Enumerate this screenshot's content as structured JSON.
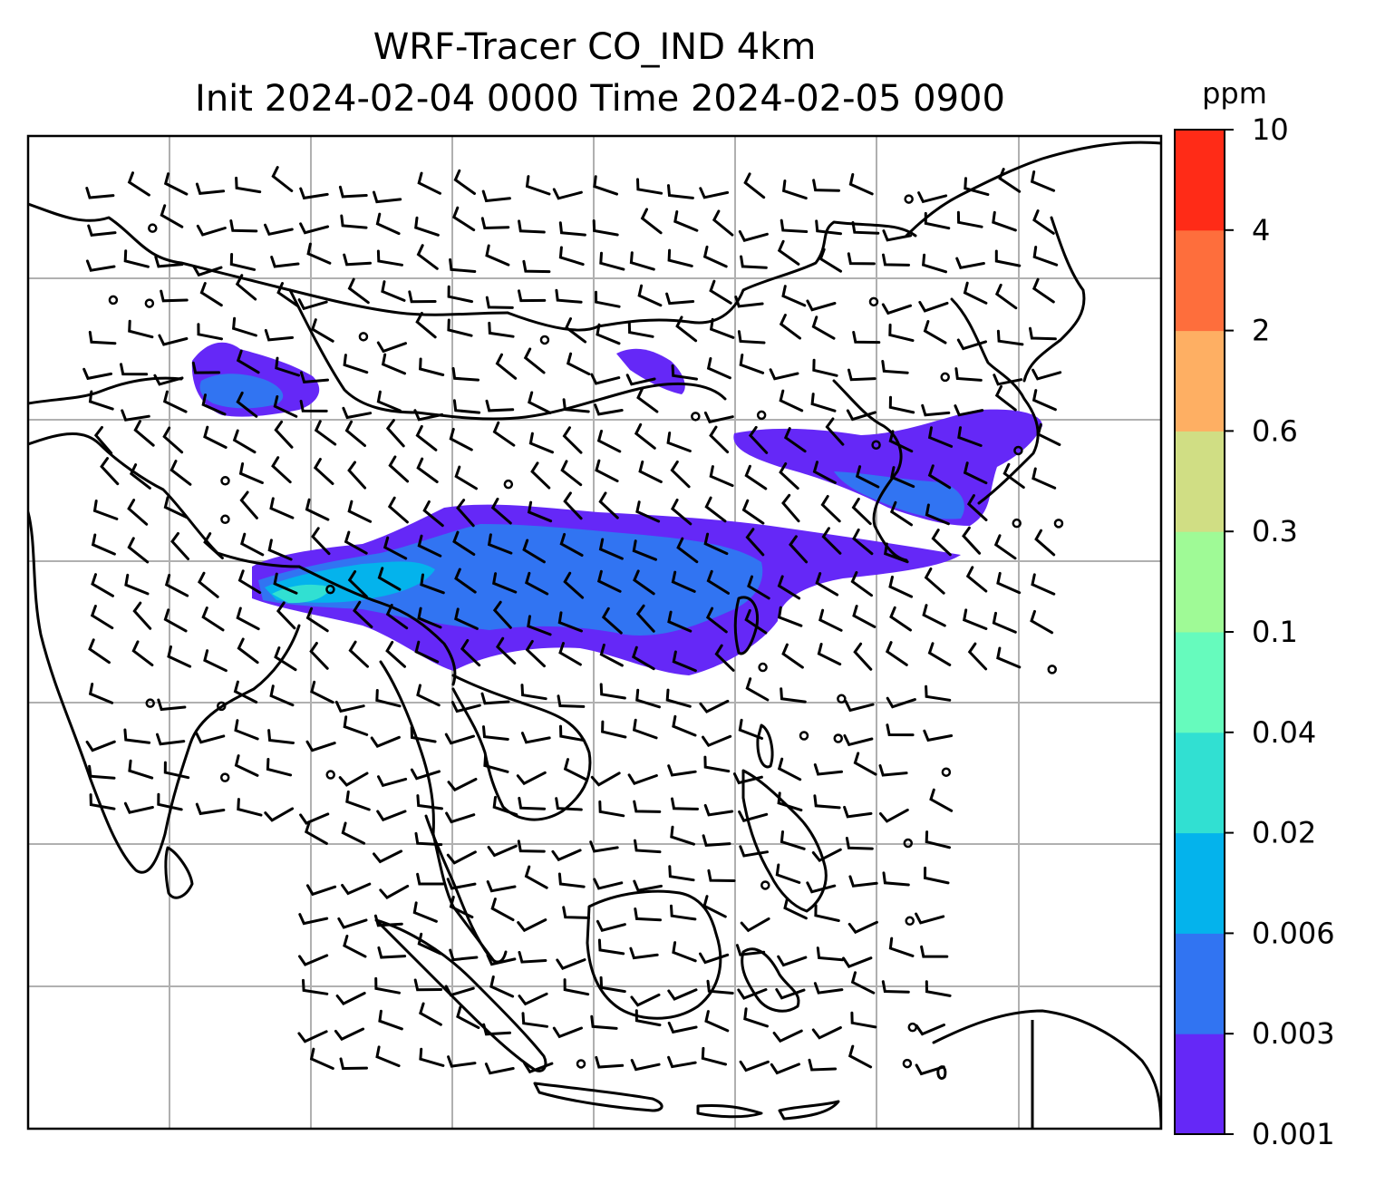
{
  "title": {
    "line1": "WRF-Tracer CO_IND 4km",
    "line2": "Init 2024-02-04 0000 Time 2024-02-05 0900"
  },
  "colorbar": {
    "unit": "ppm",
    "levels": [
      "0.001",
      "0.003",
      "0.006",
      "0.02",
      "0.04",
      "0.1",
      "0.3",
      "0.6",
      "2",
      "4",
      "10"
    ],
    "colors": [
      "#6528f7",
      "#3174f2",
      "#04b3ec",
      "#31e0d2",
      "#66fbbd",
      "#9ffa96",
      "#d0de84",
      "#feaf63",
      "#fe6e3c",
      "#ff2b17"
    ]
  },
  "plume_colors": {
    "low": "#6528f7",
    "mid": "#3174f2",
    "high": "#04b3ec",
    "higher": "#31e0d2"
  }
}
